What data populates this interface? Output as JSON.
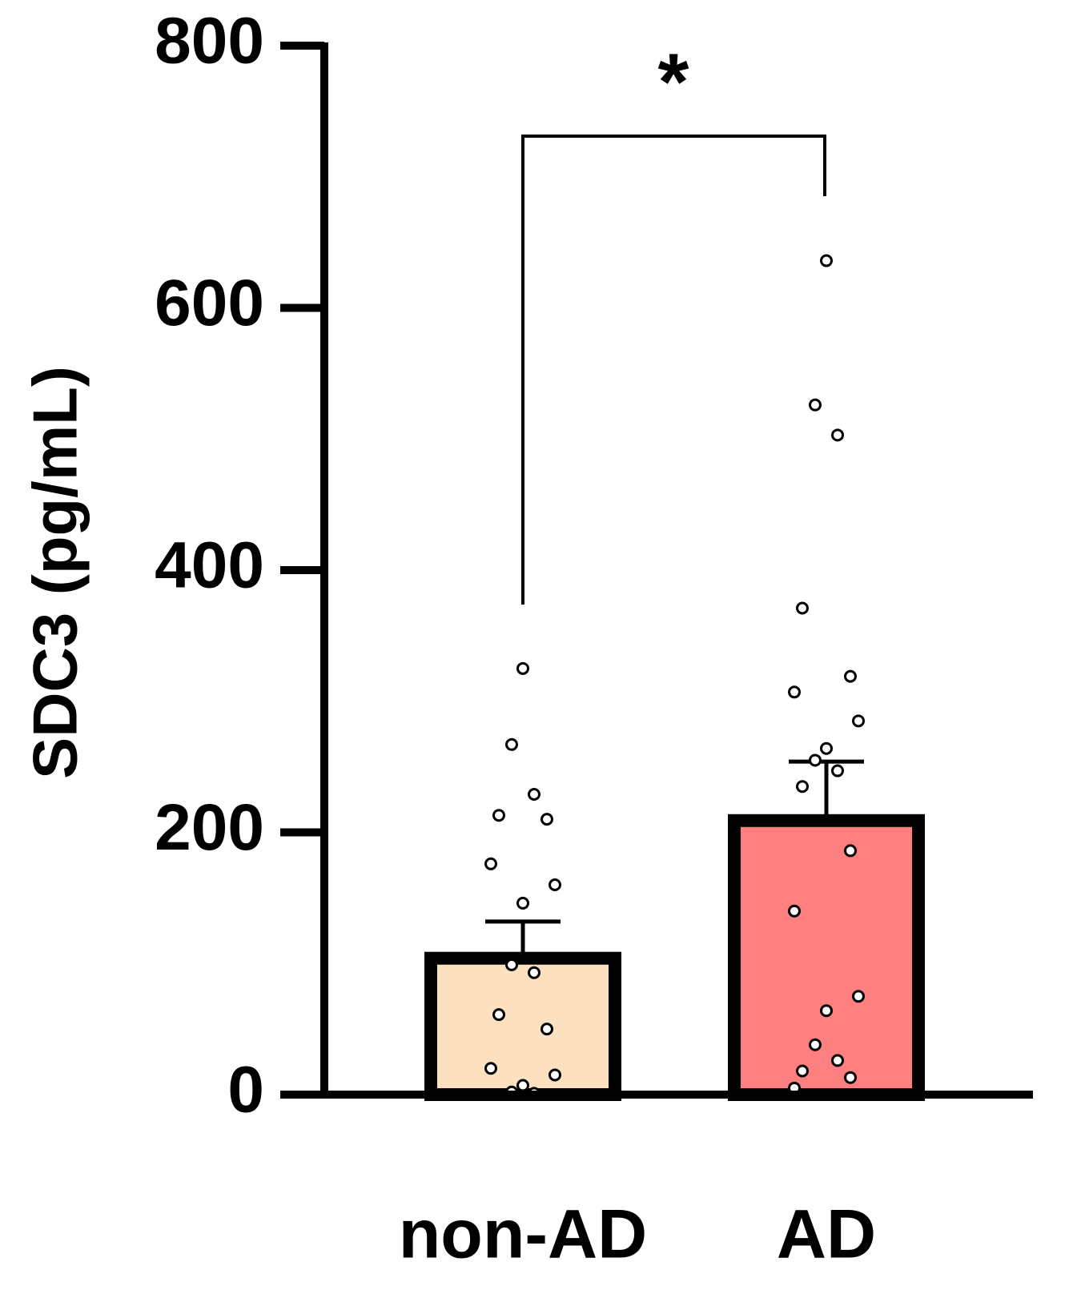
{
  "chart_data": {
    "type": "bar",
    "y_label": "SDC3 (pg/mL)",
    "categories": [
      "non-AD",
      "AD"
    ],
    "values": [
      104,
      209
    ],
    "errors": [
      28,
      45
    ],
    "colors": [
      "#fde0c0",
      "#fd7f7f"
    ],
    "points": [
      [
        325,
        267,
        229,
        213,
        210,
        176,
        160,
        146,
        99,
        93,
        61,
        50,
        20,
        15,
        7,
        2,
        1
      ],
      [
        636,
        526,
        503,
        371,
        319,
        307,
        285,
        264,
        255,
        247,
        235,
        186,
        140,
        75,
        64,
        38,
        26,
        18,
        13,
        5
      ]
    ],
    "significance": "*",
    "ylim": [
      0,
      800
    ],
    "yticks": [
      0,
      200,
      400,
      600,
      800
    ]
  }
}
